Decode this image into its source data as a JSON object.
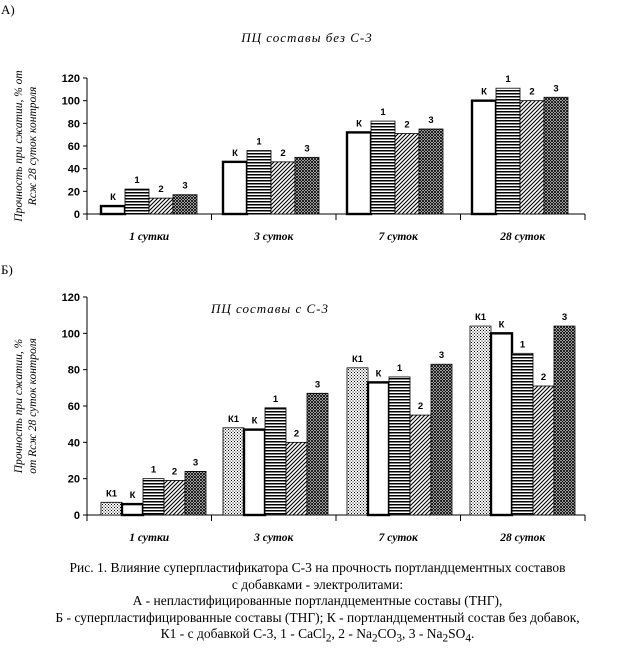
{
  "panels": {
    "a_letter": "А)",
    "b_letter": "Б)"
  },
  "chart_data": [
    {
      "type": "bar",
      "title": "ПЦ составы без С-3",
      "ylabel_line1": "Прочность при сжатии, % от",
      "ylabel_line2": "Rсж 28 суток контроля",
      "ylim": [
        0,
        120
      ],
      "yticks": [
        0,
        20,
        40,
        60,
        80,
        100,
        120
      ],
      "categories": [
        "1 сутки",
        "3 суток",
        "7 суток",
        "28 суток"
      ],
      "series": [
        {
          "name": "К",
          "pattern": "white",
          "values": [
            7,
            46,
            72,
            100
          ]
        },
        {
          "name": "1",
          "pattern": "hlines",
          "values": [
            22,
            56,
            82,
            111
          ]
        },
        {
          "name": "2",
          "pattern": "diag",
          "values": [
            14,
            46,
            71,
            100
          ]
        },
        {
          "name": "3",
          "pattern": "cross",
          "values": [
            17,
            50,
            75,
            103
          ]
        }
      ]
    },
    {
      "type": "bar",
      "title": "ПЦ составы с С-3",
      "ylabel_line1": "Прочность при сжатии, %",
      "ylabel_line2": "от Rсж 28 суток контроля",
      "ylim": [
        0,
        120
      ],
      "yticks": [
        0,
        20,
        40,
        60,
        80,
        100,
        120
      ],
      "categories": [
        "1 сутки",
        "3 суток",
        "7 суток",
        "28 суток"
      ],
      "series": [
        {
          "name": "К1",
          "pattern": "dots",
          "values": [
            7,
            48,
            81,
            104
          ]
        },
        {
          "name": "К",
          "pattern": "white",
          "values": [
            6,
            47,
            73,
            100
          ]
        },
        {
          "name": "1",
          "pattern": "hlines",
          "values": [
            20,
            59,
            76,
            89
          ]
        },
        {
          "name": "2",
          "pattern": "diag",
          "values": [
            19,
            40,
            55,
            71
          ]
        },
        {
          "name": "3",
          "pattern": "cross",
          "values": [
            24,
            67,
            83,
            104
          ]
        }
      ]
    }
  ],
  "caption": {
    "line1": "Рис. 1. Влияние суперпластификатора С-3 на прочность портландцементных составов",
    "line2": "с добавками - электролитами:",
    "line3": "А - непластифицированные портландцементные составы (ТНГ),",
    "line4": "Б - суперпластифицированные составы (ТНГ); К - портландцементный состав без добавок,",
    "line5_a": "К1 - с добавкой С-3, 1 - CaCl",
    "line5_b": "2",
    "line5_c": ", 2 - Na",
    "line5_d": "2",
    "line5_e": "CO",
    "line5_f": "3",
    "line5_g": ", 3 - Na",
    "line5_h": "2",
    "line5_i": "SO",
    "line5_j": "4",
    "line5_k": "."
  }
}
